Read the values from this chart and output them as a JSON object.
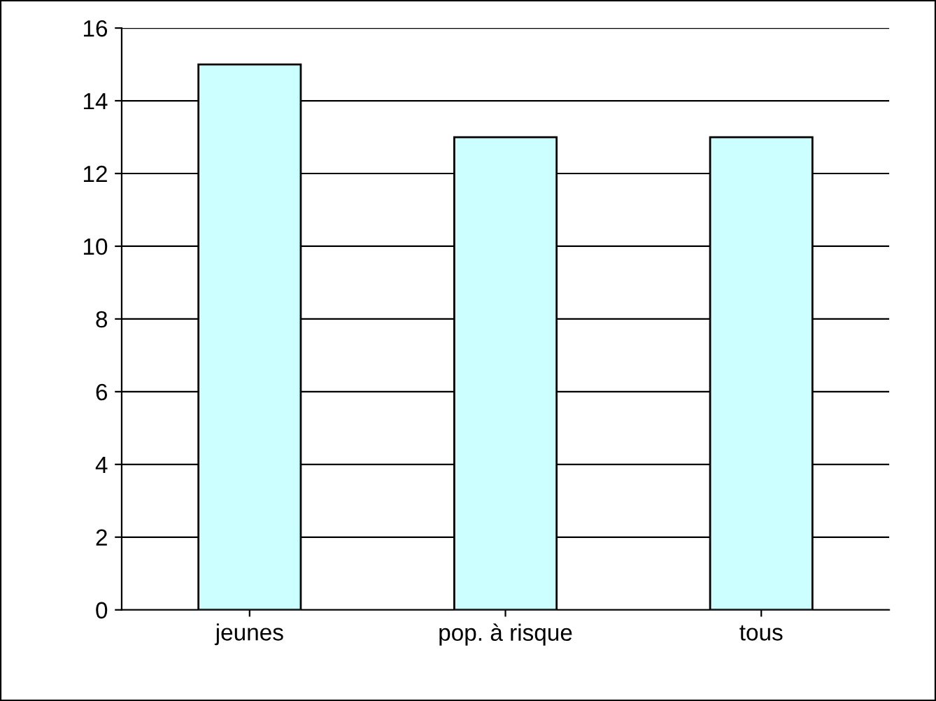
{
  "chart_data": {
    "type": "bar",
    "categories": [
      "jeunes",
      "pop. à risque",
      "tous"
    ],
    "values": [
      15,
      13,
      13
    ],
    "color": "#ccffff",
    "ylim": [
      0,
      16
    ],
    "yticks": [
      0,
      2,
      4,
      6,
      8,
      10,
      12,
      14,
      16
    ],
    "grid": "y"
  }
}
